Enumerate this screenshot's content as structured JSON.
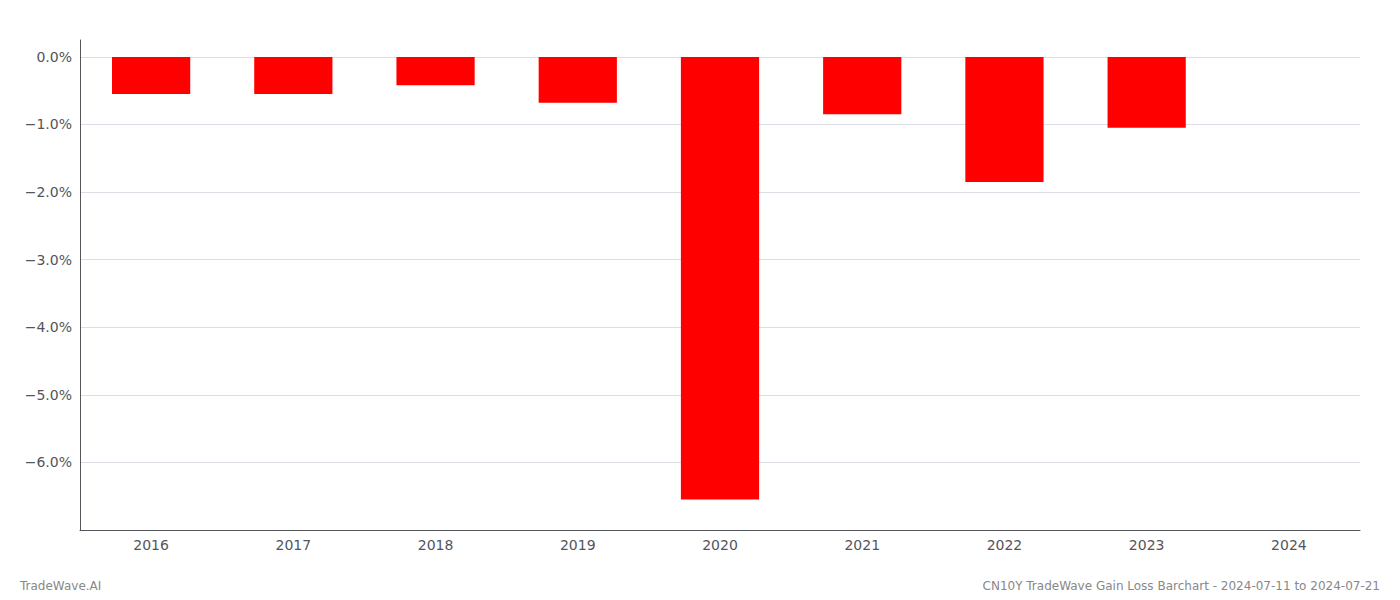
{
  "chart_data": {
    "type": "bar",
    "categories": [
      "2016",
      "2017",
      "2018",
      "2019",
      "2020",
      "2021",
      "2022",
      "2023",
      "2024"
    ],
    "values": [
      -0.55,
      -0.55,
      -0.42,
      -0.68,
      -6.55,
      -0.85,
      -1.85,
      -1.05,
      0.0
    ],
    "color": "#ff0000",
    "ylim": [
      -7.0,
      0.25
    ],
    "yticks": [
      {
        "value": 0.0,
        "label": "0.0%"
      },
      {
        "value": -1.0,
        "label": "−1.0%"
      },
      {
        "value": -2.0,
        "label": "−2.0%"
      },
      {
        "value": -3.0,
        "label": "−3.0%"
      },
      {
        "value": -4.0,
        "label": "−4.0%"
      },
      {
        "value": -5.0,
        "label": "−5.0%"
      },
      {
        "value": -6.0,
        "label": "−6.0%"
      }
    ],
    "grid": true,
    "annotations": [
      "TradeWave.AI",
      "CN10Y TradeWave Gain Loss Barchart - 2024-07-11 to 2024-07-21"
    ]
  }
}
